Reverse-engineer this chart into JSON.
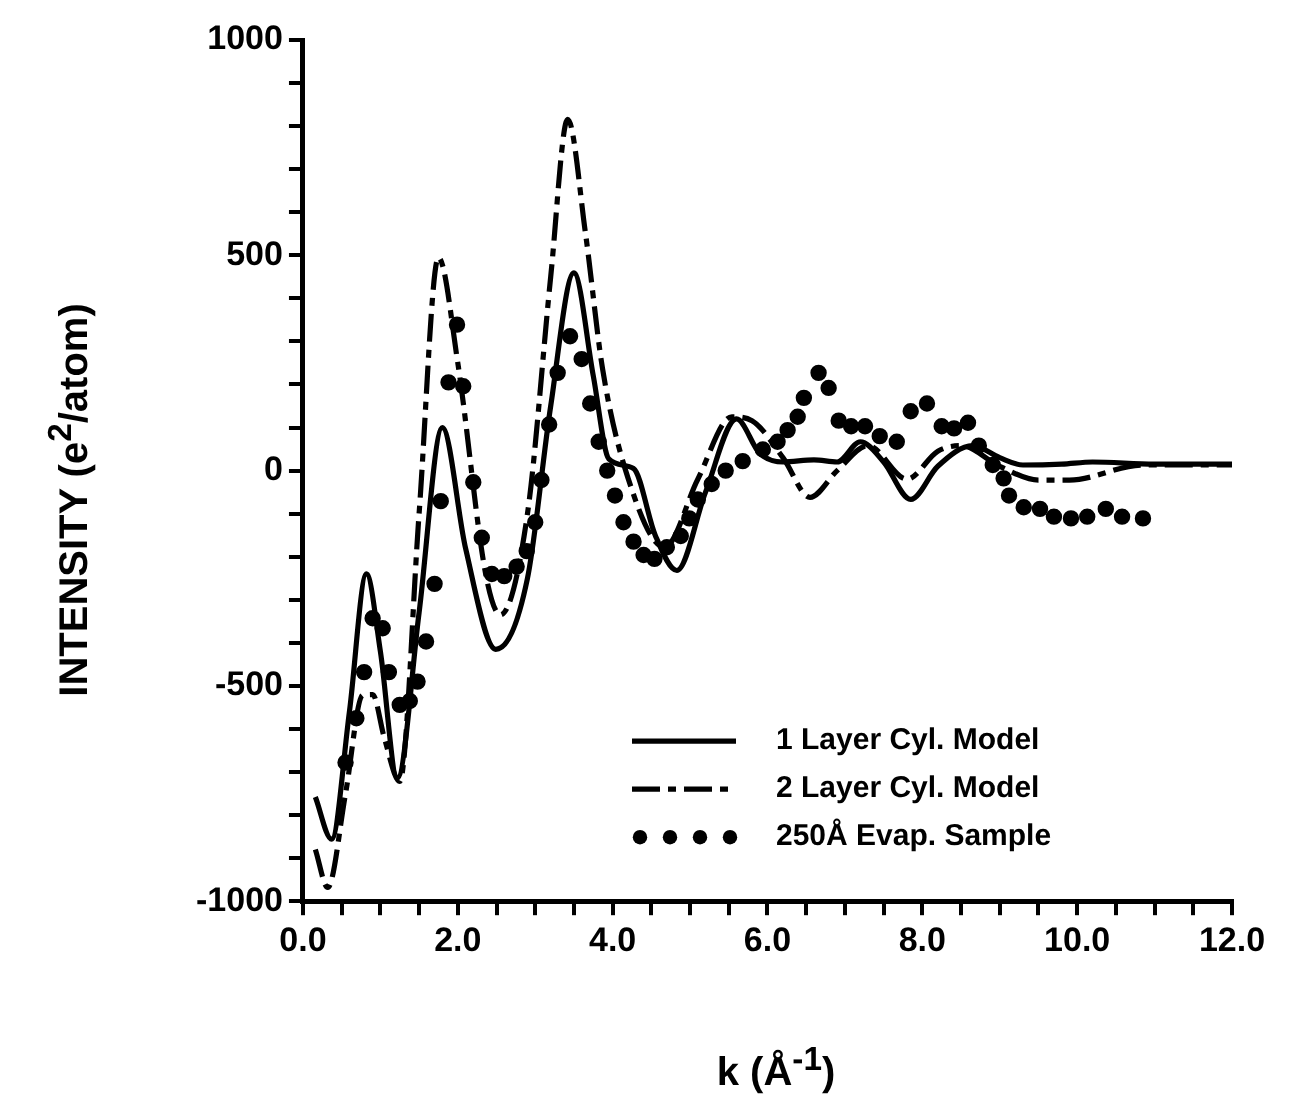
{
  "chart_data": {
    "type": "line",
    "xlabel": "k (Å$^{-1}$)",
    "ylabel": "INTENSITY (e$^{2}$/atom)",
    "xlim": [
      0,
      12
    ],
    "ylim": [
      -1000,
      1000
    ],
    "xticks": [
      {
        "value": 0,
        "label": "0.0"
      },
      {
        "value": 0.5,
        "label": null
      },
      {
        "value": 1,
        "label": null
      },
      {
        "value": 1.5,
        "label": null
      },
      {
        "value": 2,
        "label": "2.0"
      },
      {
        "value": 2.5,
        "label": null
      },
      {
        "value": 3,
        "label": null
      },
      {
        "value": 3.5,
        "label": null
      },
      {
        "value": 4,
        "label": "4.0"
      },
      {
        "value": 4.5,
        "label": null
      },
      {
        "value": 5,
        "label": null
      },
      {
        "value": 5.5,
        "label": null
      },
      {
        "value": 6,
        "label": "6.0"
      },
      {
        "value": 6.5,
        "label": null
      },
      {
        "value": 7,
        "label": null
      },
      {
        "value": 7.5,
        "label": null
      },
      {
        "value": 8,
        "label": "8.0"
      },
      {
        "value": 8.5,
        "label": null
      },
      {
        "value": 9,
        "label": null
      },
      {
        "value": 9.5,
        "label": null
      },
      {
        "value": 10,
        "label": "10.0"
      },
      {
        "value": 10.5,
        "label": null
      },
      {
        "value": 11,
        "label": null
      },
      {
        "value": 11.5,
        "label": null
      },
      {
        "value": 12,
        "label": "12.0"
      }
    ],
    "yticks": [
      -1000,
      {
        "value": -900,
        "label": null
      },
      {
        "value": -800,
        "label": null
      },
      {
        "value": -700,
        "label": null
      },
      {
        "value": -600,
        "label": null
      },
      -500,
      {
        "value": -400,
        "label": null
      },
      {
        "value": -300,
        "label": null
      },
      {
        "value": -200,
        "label": null
      },
      {
        "value": -100,
        "label": null
      },
      0,
      {
        "value": 100,
        "label": null
      },
      {
        "value": 200,
        "label": null
      },
      {
        "value": 300,
        "label": null
      },
      {
        "value": 400,
        "label": null
      },
      500,
      {
        "value": 600,
        "label": null
      },
      {
        "value": 700,
        "label": null
      },
      {
        "value": 800,
        "label": null
      },
      {
        "value": 900,
        "label": null
      },
      1000
    ],
    "grid": false,
    "legend": "bottom right",
    "series": [
      {
        "name": "1 Layer Cyl. Model",
        "color": "#000000",
        "line_style": "solid",
        "marker": "none",
        "x": [
          0.16,
          0.37,
          0.6,
          0.82,
          1.0,
          1.22,
          1.5,
          1.8,
          2.1,
          2.49,
          2.9,
          3.2,
          3.5,
          3.75,
          3.95,
          4.27,
          4.55,
          4.83,
          5.2,
          5.6,
          5.9,
          6.2,
          6.6,
          6.9,
          7.2,
          7.5,
          7.85,
          8.2,
          8.65,
          9.0,
          9.3,
          9.8,
          10.2,
          11,
          12
        ],
        "values": [
          -758,
          -856,
          -560,
          -240,
          -420,
          -714,
          -330,
          100,
          -180,
          -415,
          -250,
          150,
          459,
          220,
          27,
          5,
          -150,
          -232,
          -50,
          120,
          40,
          20,
          25,
          20,
          67,
          20,
          -67,
          10,
          58,
          30,
          13,
          15,
          20,
          15,
          15
        ]
      },
      {
        "name": "2 Layer Cyl. Model",
        "color": "#000000",
        "line_style": "dashdot",
        "marker": "none",
        "x": [
          0.16,
          0.32,
          0.55,
          0.77,
          0.9,
          1.05,
          1.25,
          1.5,
          1.75,
          2.0,
          2.36,
          2.55,
          2.9,
          3.2,
          3.42,
          3.65,
          3.87,
          4.2,
          4.67,
          5.1,
          5.54,
          5.8,
          6.2,
          6.55,
          6.9,
          7.3,
          7.8,
          8.2,
          8.5,
          9.0,
          9.5,
          9.9,
          10.85,
          12
        ],
        "values": [
          -880,
          -968,
          -750,
          -522,
          -520,
          -620,
          -722,
          -100,
          495,
          250,
          -240,
          -335,
          -100,
          450,
          816,
          550,
          236,
          -18,
          -178,
          -20,
          125,
          116,
          30,
          -62,
          0,
          58,
          -20,
          45,
          58,
          10,
          -22,
          -22,
          13,
          13
        ]
      },
      {
        "name": "250Å Evap. Sample",
        "color": "#000000",
        "type": "scatter",
        "marker": "circle",
        "x": [
          0.55,
          0.69,
          0.79,
          0.9,
          1.03,
          1.11,
          1.25,
          1.38,
          1.48,
          1.59,
          1.7,
          1.78,
          1.88,
          1.99,
          2.07,
          2.2,
          2.31,
          2.44,
          2.6,
          2.76,
          2.89,
          3.0,
          3.08,
          3.18,
          3.29,
          3.45,
          3.6,
          3.71,
          3.82,
          3.93,
          4.03,
          4.14,
          4.27,
          4.4,
          4.54,
          4.7,
          4.88,
          4.99,
          5.1,
          5.28,
          5.46,
          5.68,
          5.94,
          6.13,
          6.26,
          6.39,
          6.47,
          6.66,
          6.79,
          6.92,
          7.08,
          7.26,
          7.45,
          7.67,
          7.85,
          8.06,
          8.25,
          8.41,
          8.59,
          8.73,
          8.91,
          9.05,
          9.12,
          9.31,
          9.52,
          9.7,
          9.92,
          10.13,
          10.37,
          10.58,
          10.85
        ],
        "values": [
          -678,
          -575,
          -468,
          -343,
          -366,
          -468,
          -544,
          -535,
          -490,
          -397,
          -263,
          -71,
          205,
          339,
          196,
          -27,
          -156,
          -240,
          -245,
          -223,
          -187,
          -120,
          -22,
          107,
          227,
          312,
          259,
          156,
          67,
          0,
          -58,
          -120,
          -165,
          -196,
          -205,
          -178,
          -152,
          -111,
          -67,
          -31,
          0,
          22,
          49,
          67,
          94,
          125,
          169,
          227,
          192,
          116,
          103,
          103,
          80,
          67,
          138,
          156,
          103,
          98,
          111,
          58,
          13,
          -18,
          -58,
          -85,
          -89,
          -107,
          -111,
          -107,
          -89,
          -107,
          -111
        ]
      }
    ]
  }
}
